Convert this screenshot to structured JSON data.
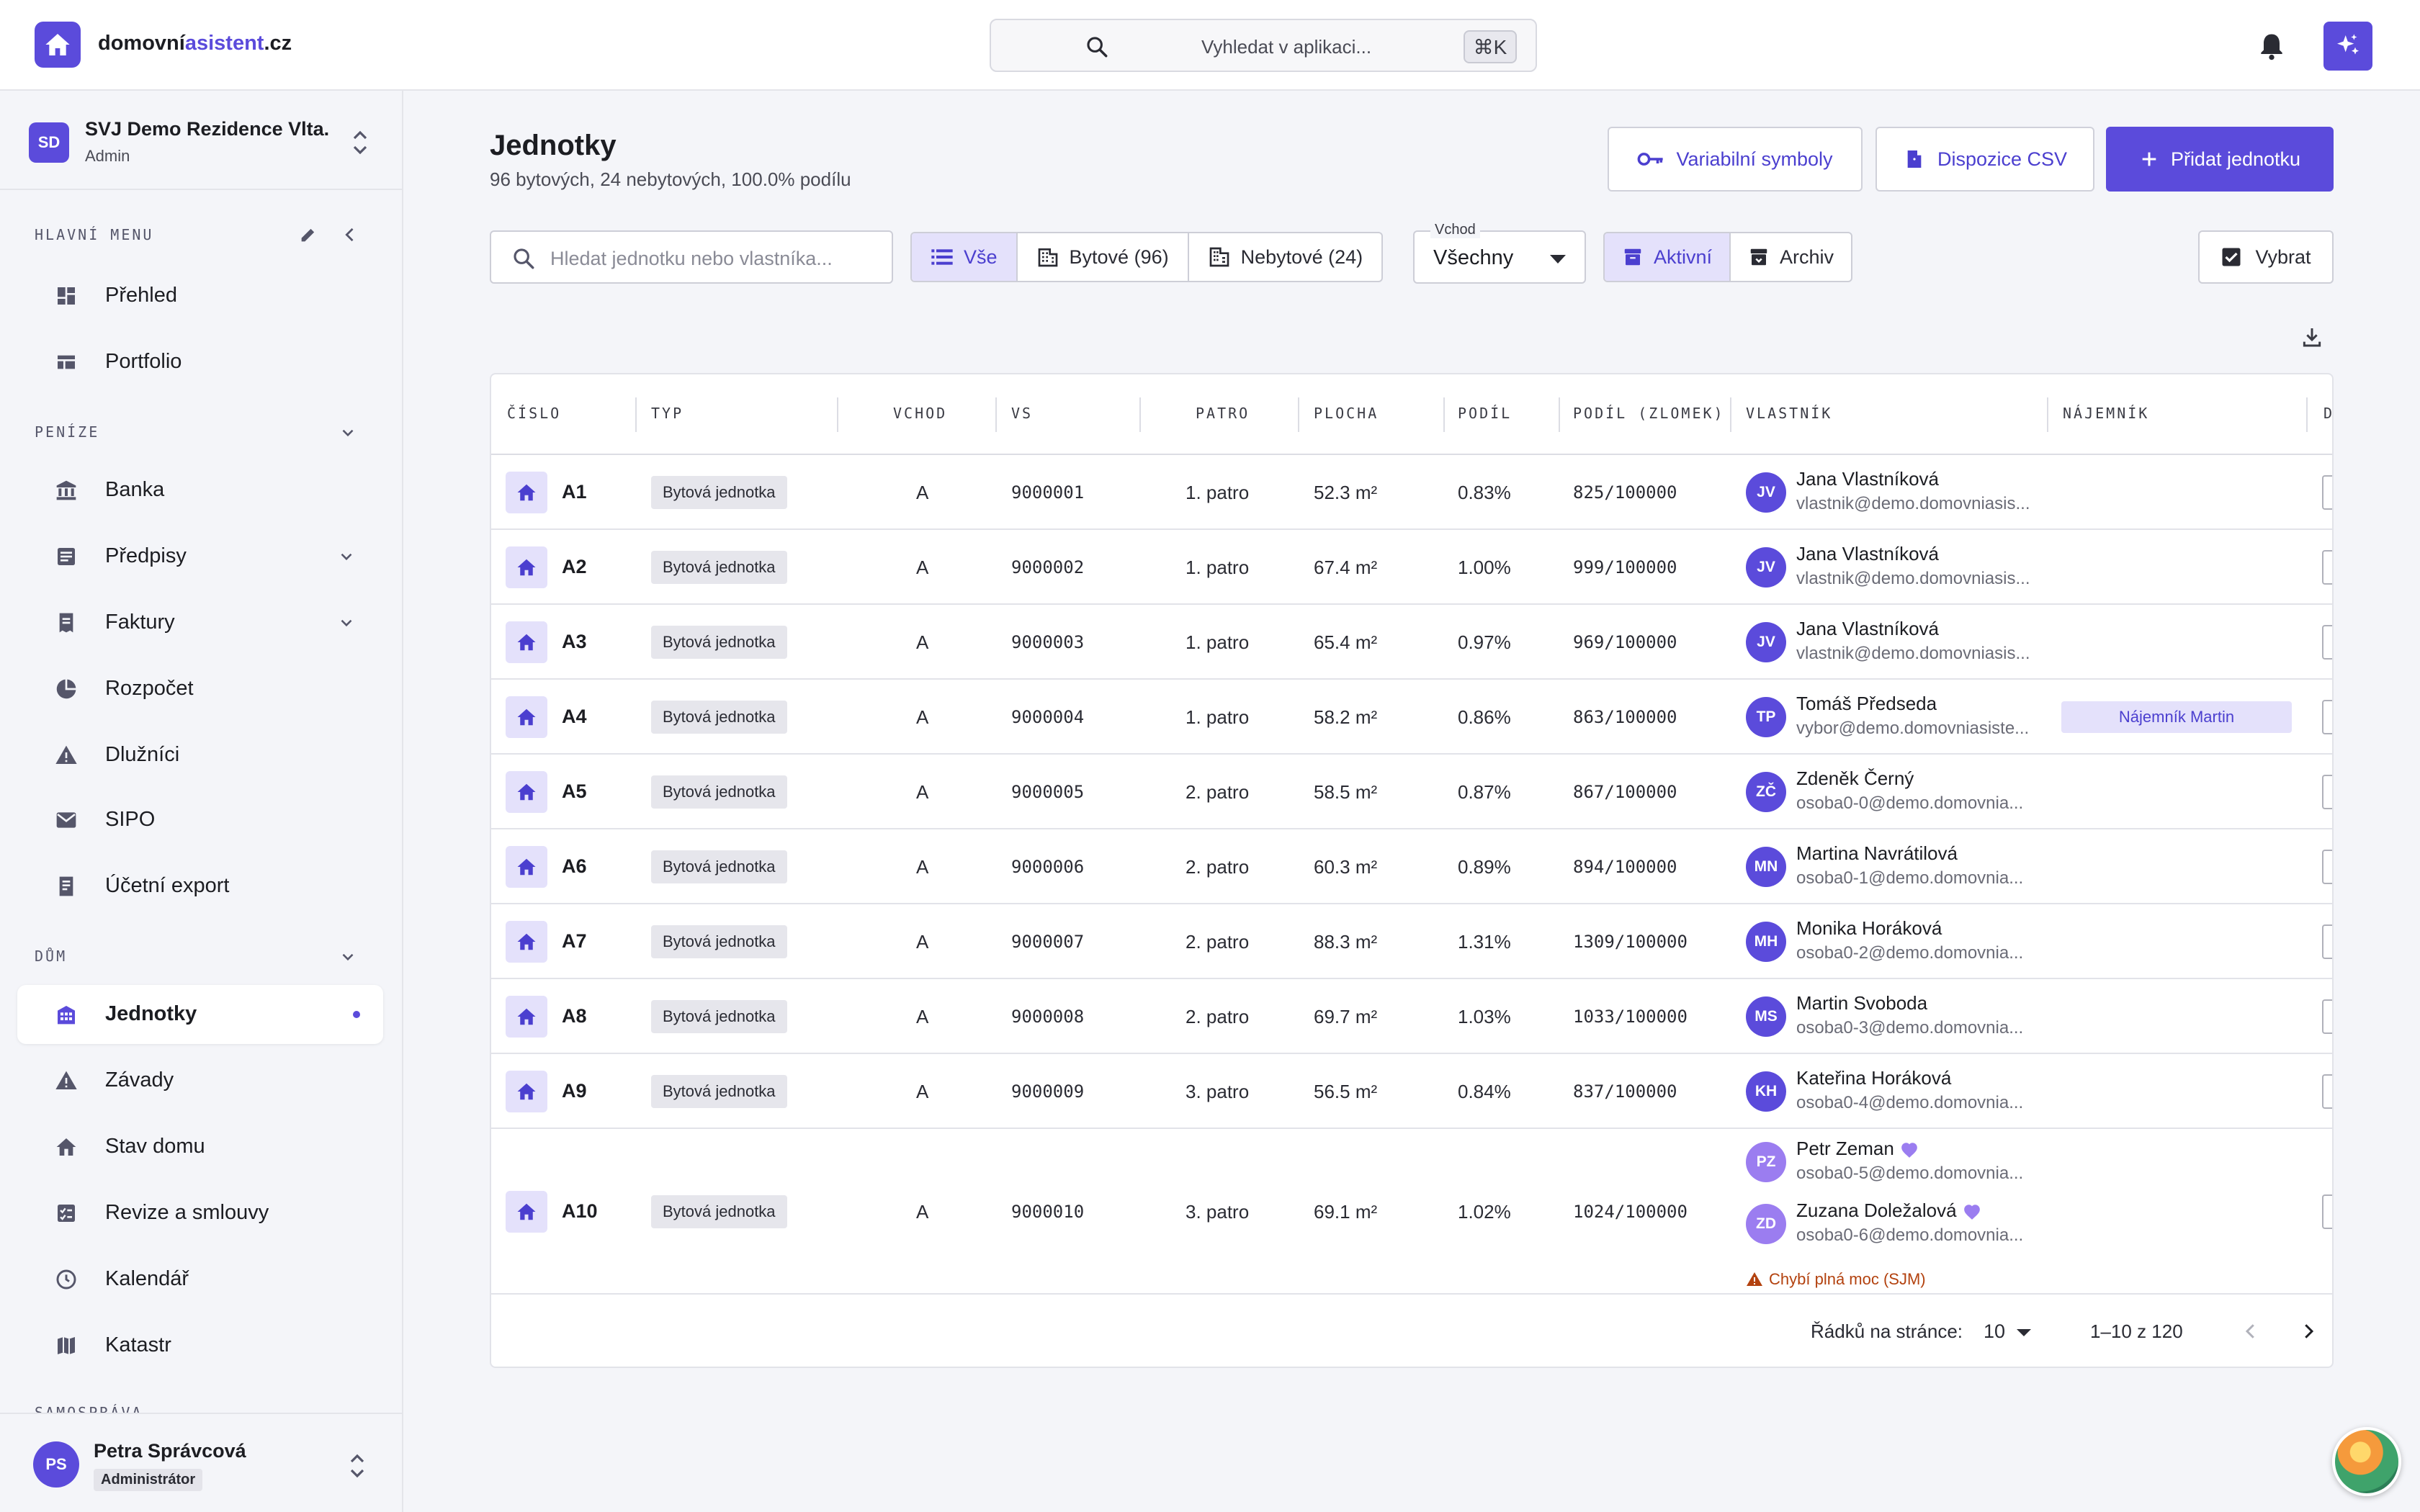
{
  "app": {
    "logo_part1": "domovní",
    "logo_part2": "asistent",
    "logo_part3": ".cz"
  },
  "search": {
    "placeholder": "Vyhledat v aplikaci...",
    "shortcut": "⌘K"
  },
  "org": {
    "avatar": "SD",
    "name": "SVJ Demo Rezidence Vlta...",
    "role": "Admin"
  },
  "sidebar": {
    "main_title": "HLAVNÍ MENU",
    "main": [
      {
        "label": "Přehled",
        "icon": "dashboard-icon"
      },
      {
        "label": "Portfolio",
        "icon": "portfolio-icon"
      }
    ],
    "money_title": "PENÍZE",
    "money": [
      {
        "label": "Banka",
        "icon": "bank-icon"
      },
      {
        "label": "Předpisy",
        "icon": "list-icon"
      },
      {
        "label": "Faktury",
        "icon": "invoice-icon"
      },
      {
        "label": "Rozpočet",
        "icon": "pie-icon"
      },
      {
        "label": "Dlužníci",
        "icon": "warning-icon"
      },
      {
        "label": "SIPO",
        "icon": "mail-icon"
      },
      {
        "label": "Účetní export",
        "icon": "export-icon"
      }
    ],
    "house_title": "DŮM",
    "house": [
      {
        "label": "Jednotky",
        "icon": "building-icon"
      },
      {
        "label": "Závady",
        "icon": "warning-icon"
      },
      {
        "label": "Stav domu",
        "icon": "house-icon"
      },
      {
        "label": "Revize a smlouvy",
        "icon": "checklist-icon"
      },
      {
        "label": "Kalendář",
        "icon": "clock-icon"
      },
      {
        "label": "Katastr",
        "icon": "map-icon"
      }
    ],
    "next_title": "SAMOSPRÁVA"
  },
  "user": {
    "avatar": "PS",
    "name": "Petra Správcová",
    "role": "Administrátor"
  },
  "page": {
    "title": "Jednotky",
    "subtitle": "96 bytových, 24 nebytových, 100.0% podílu",
    "btn_vs": "Variabilní symboly",
    "btn_csv": "Dispozice CSV",
    "btn_add": "Přidat jednotku"
  },
  "filters": {
    "search_placeholder": "Hledat jednotku nebo vlastníka...",
    "all": "Vše",
    "residential": "Bytové (96)",
    "nonresidential": "Nebytové (24)",
    "vchod_label": "Vchod",
    "vchod_value": "Všechny",
    "active": "Aktivní",
    "archive": "Archiv",
    "select": "Vybrat"
  },
  "table": {
    "headers": [
      "ČÍSLO",
      "TYP",
      "VCHOD",
      "VS",
      "PATRO",
      "PLOCHA",
      "PODÍL",
      "PODÍL (ZLOMEK)",
      "VLASTNÍK",
      "NÁJEMNÍK",
      "D"
    ],
    "rows": [
      {
        "num": "A1",
        "type": "Bytová jednotka",
        "vchod": "A",
        "vs": "9000001",
        "patro": "1. patro",
        "plocha": "52.3 m²",
        "podil": "0.83%",
        "zlomek": "825/100000",
        "owners": [
          {
            "initials": "JV",
            "name": "Jana Vlastníková",
            "email": "vlastnik@demo.domovniasis..."
          }
        ]
      },
      {
        "num": "A2",
        "type": "Bytová jednotka",
        "vchod": "A",
        "vs": "9000002",
        "patro": "1. patro",
        "plocha": "67.4 m²",
        "podil": "1.00%",
        "zlomek": "999/100000",
        "owners": [
          {
            "initials": "JV",
            "name": "Jana Vlastníková",
            "email": "vlastnik@demo.domovniasis..."
          }
        ]
      },
      {
        "num": "A3",
        "type": "Bytová jednotka",
        "vchod": "A",
        "vs": "9000003",
        "patro": "1. patro",
        "plocha": "65.4 m²",
        "podil": "0.97%",
        "zlomek": "969/100000",
        "owners": [
          {
            "initials": "JV",
            "name": "Jana Vlastníková",
            "email": "vlastnik@demo.domovniasis..."
          }
        ]
      },
      {
        "num": "A4",
        "type": "Bytová jednotka",
        "vchod": "A",
        "vs": "9000004",
        "patro": "1. patro",
        "plocha": "58.2 m²",
        "podil": "0.86%",
        "zlomek": "863/100000",
        "owners": [
          {
            "initials": "TP",
            "name": "Tomáš Předseda",
            "email": "vybor@demo.domovniasiste..."
          }
        ],
        "tenant": "Nájemník Martin"
      },
      {
        "num": "A5",
        "type": "Bytová jednotka",
        "vchod": "A",
        "vs": "9000005",
        "patro": "2. patro",
        "plocha": "58.5 m²",
        "podil": "0.87%",
        "zlomek": "867/100000",
        "owners": [
          {
            "initials": "ZČ",
            "name": "Zdeněk Černý",
            "email": "osoba0-0@demo.domovnia..."
          }
        ]
      },
      {
        "num": "A6",
        "type": "Bytová jednotka",
        "vchod": "A",
        "vs": "9000006",
        "patro": "2. patro",
        "plocha": "60.3 m²",
        "podil": "0.89%",
        "zlomek": "894/100000",
        "owners": [
          {
            "initials": "MN",
            "name": "Martina Navrátilová",
            "email": "osoba0-1@demo.domovnia..."
          }
        ]
      },
      {
        "num": "A7",
        "type": "Bytová jednotka",
        "vchod": "A",
        "vs": "9000007",
        "patro": "2. patro",
        "plocha": "88.3 m²",
        "podil": "1.31%",
        "zlomek": "1309/100000",
        "owners": [
          {
            "initials": "MH",
            "name": "Monika Horáková",
            "email": "osoba0-2@demo.domovnia..."
          }
        ]
      },
      {
        "num": "A8",
        "type": "Bytová jednotka",
        "vchod": "A",
        "vs": "9000008",
        "patro": "2. patro",
        "plocha": "69.7 m²",
        "podil": "1.03%",
        "zlomek": "1033/100000",
        "owners": [
          {
            "initials": "MS",
            "name": "Martin Svoboda",
            "email": "osoba0-3@demo.domovnia..."
          }
        ]
      },
      {
        "num": "A9",
        "type": "Bytová jednotka",
        "vchod": "A",
        "vs": "9000009",
        "patro": "3. patro",
        "plocha": "56.5 m²",
        "podil": "0.84%",
        "zlomek": "837/100000",
        "owners": [
          {
            "initials": "KH",
            "name": "Kateřina Horáková",
            "email": "osoba0-4@demo.domovnia..."
          }
        ]
      },
      {
        "num": "A10",
        "type": "Bytová jednotka",
        "vchod": "A",
        "vs": "9000010",
        "patro": "3. patro",
        "plocha": "69.1 m²",
        "podil": "1.02%",
        "zlomek": "1024/100000",
        "owners": [
          {
            "initials": "PZ",
            "name": "Petr Zeman",
            "email": "osoba0-5@demo.domovnia..."
          },
          {
            "initials": "ZD",
            "name": "Zuzana Doležalová",
            "email": "osoba0-6@demo.domovnia..."
          }
        ],
        "warning": "Chybí plná moc (SJM)"
      }
    ]
  },
  "pagination": {
    "rows_per_page_label": "Řádků na stránce:",
    "rows_per_page": "10",
    "range": "1–10 z 120"
  },
  "colors": {
    "accent": "#5b4bdb",
    "accent_light": "#e4e1fb",
    "warning": "#b3420f"
  }
}
